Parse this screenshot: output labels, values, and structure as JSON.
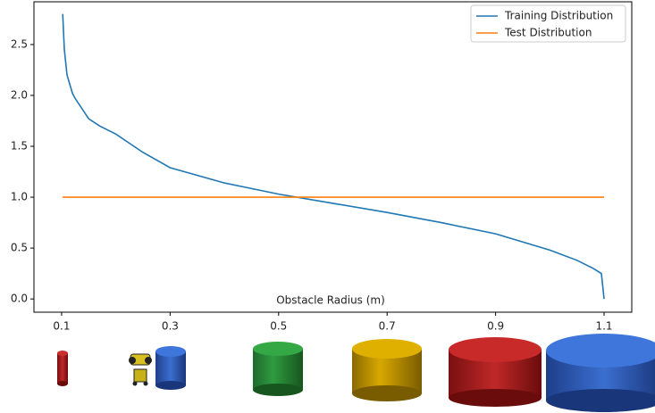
{
  "chart_data": {
    "type": "line",
    "xlabel": "Obstacle Radius (m)",
    "x": [
      0.102,
      0.105,
      0.11,
      0.12,
      0.125,
      0.14,
      0.15,
      0.17,
      0.2,
      0.25,
      0.3,
      0.4,
      0.5,
      0.6,
      0.7,
      0.8,
      0.9,
      1.0,
      1.05,
      1.08,
      1.095,
      1.1
    ],
    "series": [
      {
        "name": "Training Distribution",
        "color": "#1f77b4",
        "values": [
          2.8,
          2.45,
          2.2,
          2.02,
          1.97,
          1.85,
          1.77,
          1.7,
          1.62,
          1.44,
          1.29,
          1.14,
          1.03,
          0.94,
          0.85,
          0.75,
          0.64,
          0.48,
          0.38,
          0.3,
          0.25,
          0.0
        ]
      },
      {
        "name": "Test Distribution",
        "color": "#ff7f0e",
        "values": [
          1.0,
          1.0,
          1.0,
          1.0,
          1.0,
          1.0,
          1.0,
          1.0,
          1.0,
          1.0,
          1.0,
          1.0,
          1.0,
          1.0,
          1.0,
          1.0,
          1.0,
          1.0,
          1.0,
          1.0,
          1.0,
          1.0
        ]
      }
    ],
    "xlim": [
      0.049,
      1.151
    ],
    "ylim": [
      -0.13,
      2.92
    ],
    "xticks": [
      0.1,
      0.3,
      0.5,
      0.7,
      0.9,
      1.1
    ],
    "yticks": [
      {
        "value": 0,
        "label": "0.0"
      },
      0.5,
      {
        "value": 1,
        "label": "1.0"
      },
      1.5,
      {
        "value": 2,
        "label": "2.0"
      },
      2.5
    ],
    "legend": "upper right",
    "grid": false
  }
}
